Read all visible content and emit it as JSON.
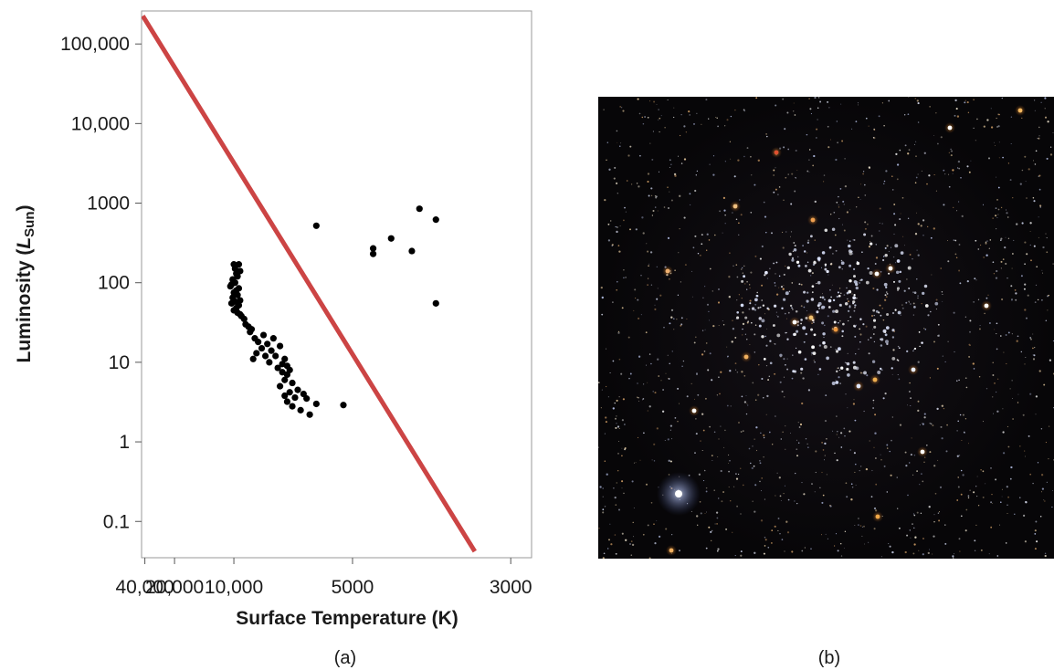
{
  "chart_data": {
    "type": "scatter",
    "xlabel": "Surface Temperature (K)",
    "ylabel_main": "Luminosity (",
    "ylabel_italic": "L",
    "ylabel_sub": "Sun",
    "ylabel_close": ")",
    "x_scale": "reciprocal",
    "y_scale": "log",
    "xlim": [
      45000,
      2850
    ],
    "ylim": [
      0.035,
      260000
    ],
    "grid": false,
    "x_ticks": [
      {
        "value": 40000,
        "label": "40,000"
      },
      {
        "value": 20000,
        "label": "20,000"
      },
      {
        "value": 10000,
        "label": "10,000"
      },
      {
        "value": 5000,
        "label": "5000"
      },
      {
        "value": 3000,
        "label": "3000"
      }
    ],
    "y_ticks": [
      {
        "value": 100000,
        "label": "100,000"
      },
      {
        "value": 10000,
        "label": "10,000"
      },
      {
        "value": 1000,
        "label": "1000"
      },
      {
        "value": 100,
        "label": "100"
      },
      {
        "value": 10,
        "label": "10"
      },
      {
        "value": 1,
        "label": "1"
      },
      {
        "value": 0.1,
        "label": "0.1"
      }
    ],
    "line_color": "#cc4444",
    "point_color": "#000000",
    "series": [
      {
        "type": "line",
        "points": [
          [
            43000,
            225000
          ],
          [
            3300,
            0.042
          ]
        ]
      },
      {
        "type": "scatter",
        "points": [
          [
            10000,
            170
          ],
          [
            9900,
            150
          ],
          [
            9800,
            130
          ],
          [
            9700,
            120
          ],
          [
            9600,
            170
          ],
          [
            9500,
            140
          ],
          [
            10100,
            110
          ],
          [
            9900,
            100
          ],
          [
            10200,
            95
          ],
          [
            10300,
            90
          ],
          [
            9600,
            85
          ],
          [
            9800,
            80
          ],
          [
            10000,
            75
          ],
          [
            9700,
            70
          ],
          [
            10100,
            65
          ],
          [
            9500,
            60
          ],
          [
            9900,
            58
          ],
          [
            10200,
            55
          ],
          [
            9600,
            52
          ],
          [
            9800,
            48
          ],
          [
            10000,
            45
          ],
          [
            9700,
            42
          ],
          [
            9500,
            40
          ],
          [
            9400,
            38
          ],
          [
            9200,
            35
          ],
          [
            9100,
            30
          ],
          [
            8900,
            28
          ],
          [
            8700,
            26
          ],
          [
            8800,
            24
          ],
          [
            8500,
            20
          ],
          [
            8000,
            22
          ],
          [
            7500,
            20
          ],
          [
            8300,
            18
          ],
          [
            7800,
            17
          ],
          [
            7200,
            16
          ],
          [
            8100,
            15
          ],
          [
            7600,
            14
          ],
          [
            8400,
            13
          ],
          [
            7900,
            12
          ],
          [
            7400,
            12
          ],
          [
            8600,
            11
          ],
          [
            7000,
            11
          ],
          [
            7700,
            10
          ],
          [
            7100,
            9.5
          ],
          [
            6900,
            9
          ],
          [
            7300,
            8.5
          ],
          [
            6800,
            8
          ],
          [
            7100,
            7.5
          ],
          [
            6900,
            7
          ],
          [
            7000,
            6
          ],
          [
            6700,
            5.5
          ],
          [
            7200,
            5
          ],
          [
            6500,
            4.5
          ],
          [
            6800,
            4.2
          ],
          [
            6300,
            4
          ],
          [
            7000,
            3.8
          ],
          [
            6600,
            3.6
          ],
          [
            6200,
            3.5
          ],
          [
            6900,
            3.2
          ],
          [
            5900,
            3
          ],
          [
            6700,
            2.8
          ],
          [
            6400,
            2.5
          ],
          [
            6100,
            2.2
          ],
          [
            5200,
            2.9
          ],
          [
            5900,
            520
          ],
          [
            4600,
            270
          ],
          [
            4600,
            230
          ],
          [
            4300,
            360
          ],
          [
            4000,
            250
          ],
          [
            3900,
            850
          ],
          [
            3700,
            620
          ],
          [
            3700,
            55
          ]
        ]
      }
    ],
    "panel_labels": [
      "(a)",
      "(b)"
    ]
  }
}
